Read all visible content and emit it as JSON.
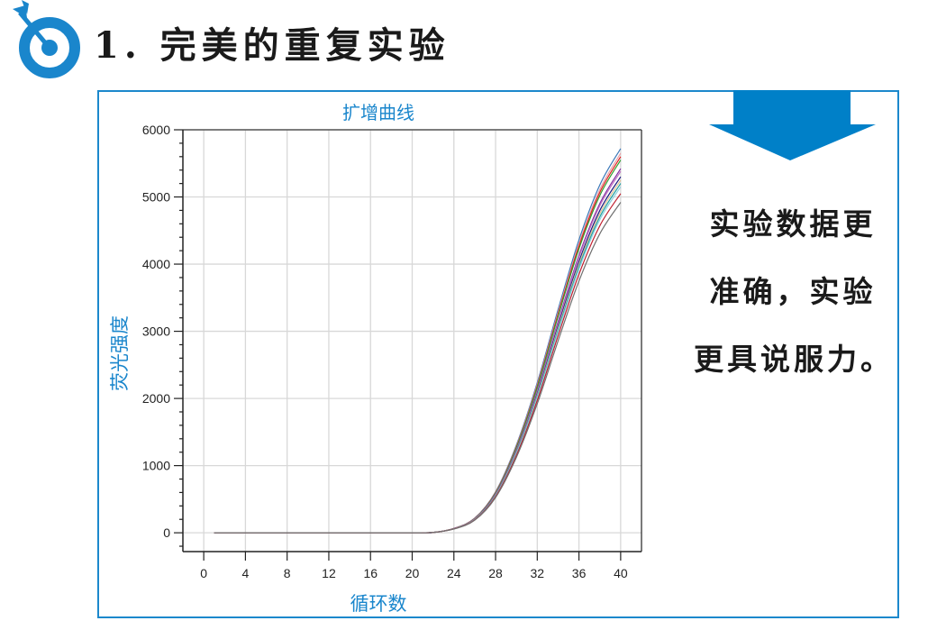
{
  "heading": {
    "text": "1. 完美的重复实验",
    "icon": "target-arrow-icon",
    "accent_color": "#1a86cc"
  },
  "side_panel": {
    "arrow_icon": "down-arrow-icon",
    "arrow_color": "#0080c8",
    "lines": [
      "实验数据更",
      "准确，实验",
      "更具说服力。"
    ]
  },
  "chart_data": {
    "type": "line",
    "title": "扩增曲线",
    "xlabel": "循环数",
    "ylabel": "荧光强度",
    "xlim": [
      -2,
      42
    ],
    "ylim": [
      -280,
      6000
    ],
    "xticks": [
      0,
      4,
      8,
      12,
      16,
      20,
      24,
      28,
      32,
      36,
      40
    ],
    "yticks": [
      0,
      1000,
      2000,
      3000,
      4000,
      5000,
      6000
    ],
    "grid": true,
    "legend": "none",
    "x": [
      1,
      4,
      8,
      12,
      16,
      20,
      22,
      24,
      26,
      28,
      30,
      32,
      34,
      36,
      38,
      40
    ],
    "series": [
      {
        "color": "#3a78b8",
        "values": [
          0,
          0,
          0,
          0,
          0,
          0,
          5,
          65,
          218,
          610,
          1308,
          2235,
          3325,
          4360,
          5178,
          5720
        ]
      },
      {
        "color": "#e8a0a8",
        "values": [
          0,
          0,
          0,
          0,
          0,
          0,
          5,
          65,
          215,
          603,
          1291,
          2206,
          3282,
          4304,
          5111,
          5650
        ]
      },
      {
        "color": "#e02020",
        "values": [
          0,
          0,
          0,
          0,
          0,
          0,
          5,
          64,
          213,
          598,
          1280,
          2187,
          3254,
          4268,
          5068,
          5600
        ]
      },
      {
        "color": "#30a030",
        "values": [
          0,
          0,
          0,
          0,
          0,
          0,
          5,
          63,
          211,
          592,
          1268,
          2167,
          3224,
          4228,
          5021,
          5550
        ]
      },
      {
        "color": "#8030a0",
        "values": [
          0,
          0,
          0,
          0,
          0,
          0,
          5,
          62,
          206,
          578,
          1238,
          2116,
          3148,
          4128,
          4902,
          5420
        ]
      },
      {
        "color": "#c070c0",
        "values": [
          0,
          0,
          0,
          0,
          0,
          0,
          5,
          62,
          205,
          574,
          1230,
          2101,
          3126,
          4100,
          4869,
          5380
        ]
      },
      {
        "color": "#1a1a80",
        "values": [
          0,
          0,
          0,
          0,
          0,
          0,
          5,
          61,
          202,
          566,
          1212,
          2071,
          3081,
          4040,
          4798,
          5300
        ]
      },
      {
        "color": "#e0c090",
        "values": [
          0,
          0,
          0,
          0,
          0,
          0,
          5,
          60,
          200,
          560,
          1200,
          2050,
          3050,
          4000,
          4750,
          5250
        ]
      },
      {
        "color": "#20a0a0",
        "values": [
          0,
          0,
          0,
          0,
          0,
          0,
          5,
          59,
          198,
          554,
          1188,
          2030,
          3020,
          3960,
          4703,
          5200
        ]
      },
      {
        "color": "#90d0e0",
        "values": [
          0,
          0,
          0,
          0,
          0,
          0,
          5,
          59,
          196,
          549,
          1177,
          2011,
          2992,
          3924,
          4660,
          5150
        ]
      },
      {
        "color": "#c02030",
        "values": [
          0,
          0,
          0,
          0,
          0,
          0,
          5,
          58,
          192,
          539,
          1154,
          1972,
          2934,
          3848,
          4570,
          5050
        ]
      },
      {
        "color": "#707070",
        "values": [
          0,
          0,
          0,
          0,
          0,
          0,
          5,
          56,
          187,
          525,
          1124,
          1921,
          2858,
          3748,
          4451,
          4920
        ]
      }
    ]
  }
}
